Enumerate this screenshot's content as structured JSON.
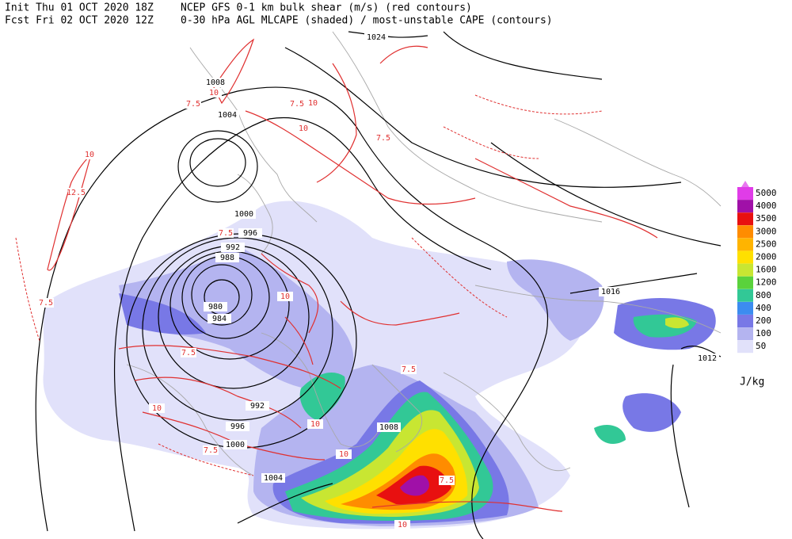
{
  "header": {
    "init": "Init  Thu 01 OCT 2020 18Z",
    "forecast": "Fcst Fri 02 OCT 2020 12Z",
    "title_line1": "NCEP GFS 0-1 km bulk shear (m/s) (red contours)",
    "title_line2": "0-30 hPa AGL MLCAPE (shaded) / most-unstable CAPE (contours)"
  },
  "legend": {
    "unit": "J/kg",
    "levels": [
      {
        "label": "5000",
        "color": "#e03ce8"
      },
      {
        "label": "4000",
        "color": "#a010a8"
      },
      {
        "label": "3500",
        "color": "#e81010"
      },
      {
        "label": "3000",
        "color": "#ff8c00"
      },
      {
        "label": "2500",
        "color": "#ffb400"
      },
      {
        "label": "2000",
        "color": "#ffe000"
      },
      {
        "label": "1600",
        "color": "#c8e632"
      },
      {
        "label": "1200",
        "color": "#5ad23c"
      },
      {
        "label": "800",
        "color": "#32c896"
      },
      {
        "label": "400",
        "color": "#3c8cf0"
      },
      {
        "label": "200",
        "color": "#7878e6"
      },
      {
        "label": "100",
        "color": "#b4b4f0"
      },
      {
        "label": "50",
        "color": "#e1e1fa"
      }
    ]
  },
  "pressure_labels": [
    "1024",
    "1008",
    "1004",
    "1000",
    "996",
    "992",
    "988",
    "980",
    "984",
    "1016",
    "1012",
    "992",
    "996",
    "1000",
    "1004",
    "1008"
  ],
  "shear_labels": [
    "7.5",
    "10",
    "12.5",
    "10",
    "7.5",
    "10",
    "7.5",
    "7.5",
    "10",
    "7.5",
    "10",
    "7.5",
    "10",
    "7.5",
    "10",
    "7.5",
    "7.5",
    "10",
    "10"
  ]
}
